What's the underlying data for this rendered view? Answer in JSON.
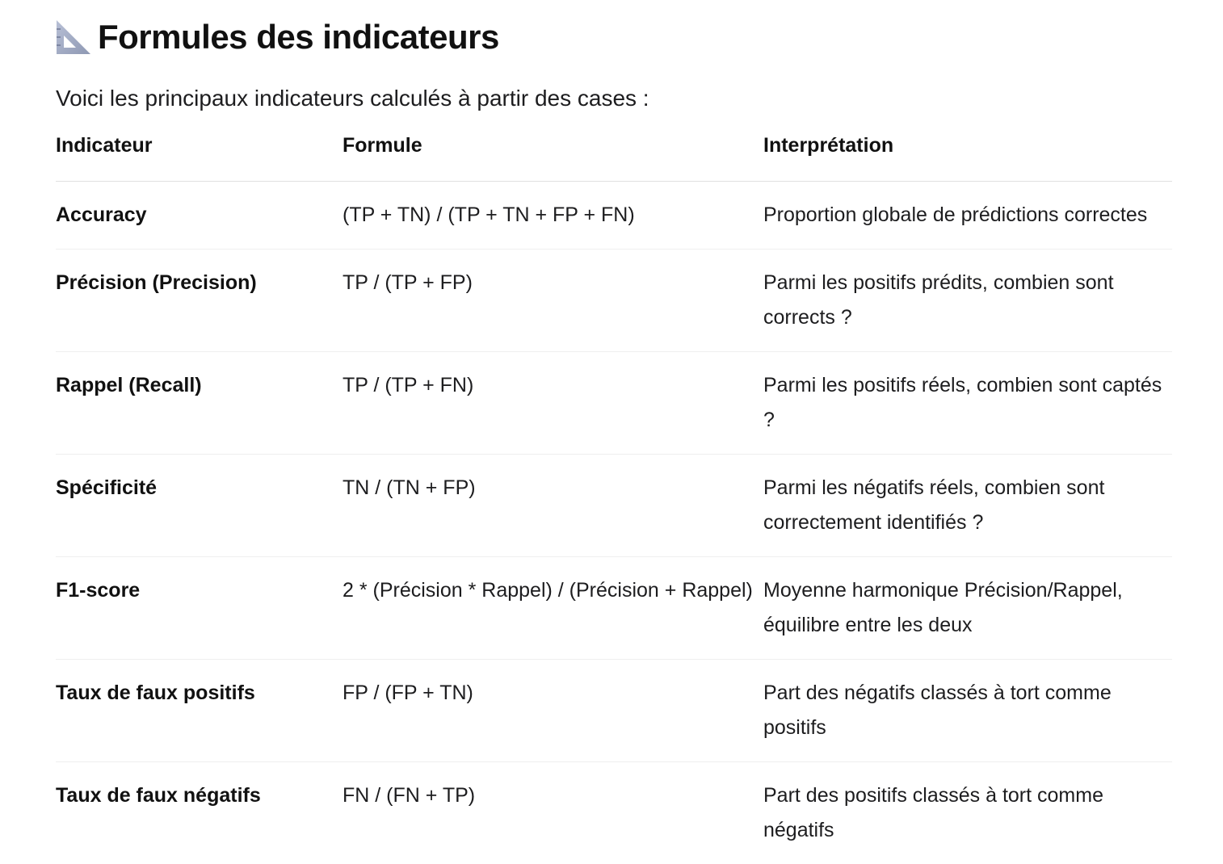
{
  "heading": {
    "icon": "triangular-ruler-icon",
    "title": "Formules des indicateurs"
  },
  "intro": "Voici les principaux indicateurs calculés à partir des cases :",
  "table": {
    "headers": [
      "Indicateur",
      "Formule",
      "Interprétation"
    ],
    "rows": [
      {
        "name": "Accuracy",
        "formula": "(TP + TN) / (TP + TN + FP + FN)",
        "interpretation": "Proportion globale de prédictions correctes"
      },
      {
        "name": "Précision (Precision)",
        "formula": "TP / (TP + FP)",
        "interpretation": "Parmi les positifs prédits, combien sont corrects ?"
      },
      {
        "name": "Rappel (Recall)",
        "formula": "TP / (TP + FN)",
        "interpretation": "Parmi les positifs réels, combien sont captés ?"
      },
      {
        "name": "Spécificité",
        "formula": "TN / (TN + FP)",
        "interpretation": "Parmi les négatifs réels, combien sont correctement identifiés ?"
      },
      {
        "name": "F1-score",
        "formula": "2 * (Précision * Rappel) / (Précision + Rappel)",
        "interpretation": "Moyenne harmonique Précision/Rappel, équilibre entre les deux"
      },
      {
        "name": "Taux de faux positifs",
        "formula": "FP / (FP + TN)",
        "interpretation": "Part des négatifs classés à tort comme positifs"
      },
      {
        "name": "Taux de faux négatifs",
        "formula": "FN / (FN + TP)",
        "interpretation": "Part des positifs classés à tort comme négatifs"
      }
    ]
  }
}
